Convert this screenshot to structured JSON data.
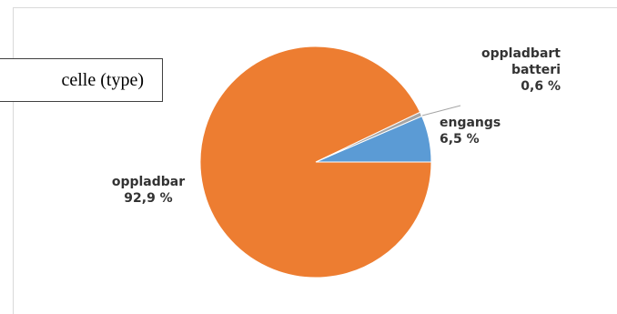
{
  "title_box": {
    "text": "celle (type)"
  },
  "chart_data": {
    "type": "pie",
    "title": "",
    "slices": [
      {
        "label": "oppladbar",
        "value": 92.9,
        "display": "92,9 %",
        "color": "#ED7D31"
      },
      {
        "label": "engangs",
        "value": 6.5,
        "display": "6,5 %",
        "color": "#5B9BD5"
      },
      {
        "label": "oppladbart batteri",
        "label_lines": [
          "oppladbart",
          "batteri"
        ],
        "value": 0.6,
        "display": "0,6 %",
        "color": "#A5A5A5"
      }
    ],
    "legend": "none",
    "data_labels": "outside"
  }
}
